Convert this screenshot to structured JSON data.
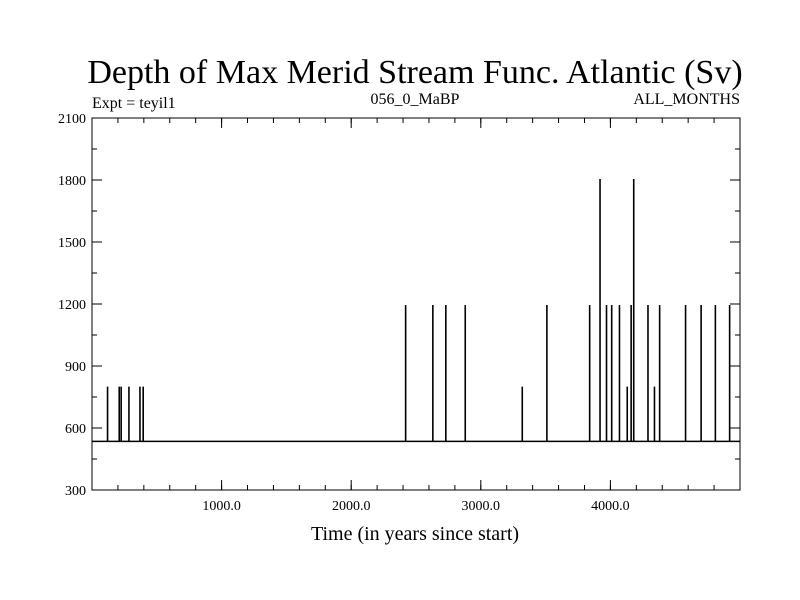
{
  "chart_data": {
    "type": "line",
    "title": "Depth of Max Merid Stream Func. Atlantic (Sv)",
    "subtitle_left": "Expt = teyil1",
    "subtitle_center": "056_0_MaBP",
    "subtitle_right": "ALL_MONTHS",
    "xlabel": "Time (in years since start)",
    "ylabel": "",
    "xlim": [
      0,
      5000
    ],
    "ylim": [
      300,
      2100
    ],
    "xticks_major": [
      1000,
      2000,
      3000,
      4000
    ],
    "xticks_minor_step": 200,
    "yticks_major": [
      300,
      600,
      900,
      1200,
      1500,
      1800,
      2100
    ],
    "yticks_minor_step": 150,
    "x_tick_labels": [
      "1000.0",
      "2000.0",
      "3000.0",
      "4000.0"
    ],
    "y_tick_labels": [
      "300",
      "600",
      "900",
      "1200",
      "1500",
      "1800",
      "2100"
    ],
    "baseline": 535,
    "series": [
      {
        "values": [
          {
            "x": 120,
            "y": 800
          },
          {
            "x": 210,
            "y": 800
          },
          {
            "x": 225,
            "y": 800
          },
          {
            "x": 285,
            "y": 800
          },
          {
            "x": 370,
            "y": 800
          },
          {
            "x": 395,
            "y": 800
          },
          {
            "x": 2420,
            "y": 1195
          },
          {
            "x": 2630,
            "y": 1195
          },
          {
            "x": 2730,
            "y": 1195
          },
          {
            "x": 2880,
            "y": 1195
          },
          {
            "x": 3320,
            "y": 800
          },
          {
            "x": 3510,
            "y": 1195
          },
          {
            "x": 3840,
            "y": 1195
          },
          {
            "x": 3920,
            "y": 1805
          },
          {
            "x": 3970,
            "y": 1195
          },
          {
            "x": 4010,
            "y": 1195
          },
          {
            "x": 4070,
            "y": 1195
          },
          {
            "x": 4130,
            "y": 800
          },
          {
            "x": 4160,
            "y": 1195
          },
          {
            "x": 4180,
            "y": 1805
          },
          {
            "x": 4290,
            "y": 1195
          },
          {
            "x": 4340,
            "y": 800
          },
          {
            "x": 4380,
            "y": 1195
          },
          {
            "x": 4580,
            "y": 1195
          },
          {
            "x": 4700,
            "y": 1195
          },
          {
            "x": 4810,
            "y": 1195
          },
          {
            "x": 4920,
            "y": 1195
          }
        ]
      }
    ]
  }
}
